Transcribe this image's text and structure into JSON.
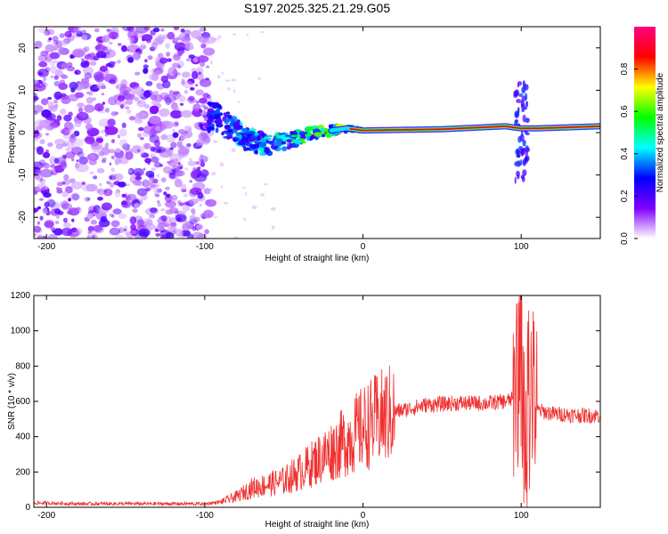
{
  "title": "S197.2025.325.21.29.G05",
  "chart_data": [
    {
      "type": "heatmap",
      "name": "spectrogram",
      "xlabel": "Height of straight line (km)",
      "ylabel": "Frequency (Hz)",
      "xlim": [
        -208,
        150
      ],
      "ylim": [
        -25,
        25
      ],
      "xticks": [
        -200,
        -100,
        0,
        100
      ],
      "yticks": [
        -20,
        -10,
        0,
        10,
        20
      ],
      "colorbar": {
        "label": "Normalized spectral amplitude",
        "range": [
          0,
          1
        ],
        "ticks": [
          0.0,
          0.2,
          0.4,
          0.6,
          0.8
        ],
        "tick_labels": [
          "0.0",
          "0.2",
          "0.4",
          "0.6",
          "0.8"
        ],
        "colors": [
          "#ffffff",
          "#8000ff",
          "#0000ff",
          "#00ffff",
          "#00ff00",
          "#ffff00",
          "#ff0000",
          "#ff0080"
        ]
      },
      "ridge": [
        {
          "x": -98,
          "f": 4
        },
        {
          "x": -90,
          "f": 3
        },
        {
          "x": -80,
          "f": 0
        },
        {
          "x": -70,
          "f": -2
        },
        {
          "x": -60,
          "f": -3
        },
        {
          "x": -50,
          "f": -2
        },
        {
          "x": -40,
          "f": -1
        },
        {
          "x": -30,
          "f": 0
        },
        {
          "x": -20,
          "f": 0.5
        },
        {
          "x": -10,
          "f": 1
        },
        {
          "x": 0,
          "f": 0.5
        },
        {
          "x": 50,
          "f": 0.8
        },
        {
          "x": 90,
          "f": 1.5
        },
        {
          "x": 100,
          "f": 1
        },
        {
          "x": 110,
          "f": 1
        },
        {
          "x": 150,
          "f": 1.5
        }
      ]
    },
    {
      "type": "line",
      "name": "snr",
      "xlabel": "Height of straight line (km)",
      "ylabel": "SNR (10 * v/v)",
      "xlim": [
        -208,
        150
      ],
      "ylim": [
        0,
        1200
      ],
      "xticks": [
        -200,
        -100,
        0,
        100
      ],
      "yticks": [
        0,
        200,
        400,
        600,
        800,
        1000,
        1200
      ],
      "color": "#f03030",
      "series": [
        {
          "name": "SNR",
          "x": [
            -208,
            -180,
            -150,
            -120,
            -100,
            -90,
            -80,
            -70,
            -60,
            -50,
            -40,
            -30,
            -20,
            -10,
            0,
            10,
            20,
            30,
            40,
            50,
            60,
            70,
            80,
            90,
            97,
            100,
            103,
            106,
            110,
            120,
            130,
            140,
            150
          ],
          "y": [
            25,
            20,
            20,
            20,
            20,
            30,
            60,
            110,
            130,
            150,
            200,
            260,
            320,
            380,
            450,
            500,
            540,
            560,
            580,
            585,
            590,
            590,
            590,
            600,
            620,
            800,
            300,
            700,
            550,
            530,
            525,
            520,
            520
          ]
        }
      ]
    }
  ]
}
